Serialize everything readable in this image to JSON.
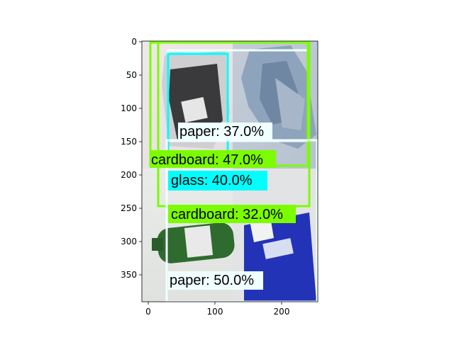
{
  "image_panel": {
    "x_ticks": [
      "0",
      "100",
      "200"
    ],
    "y_ticks": [
      "0",
      "50",
      "100",
      "150",
      "200",
      "250",
      "300",
      "350"
    ]
  },
  "colors": {
    "paper": "#f0ffff",
    "cardboard": "#7cfc00",
    "glass": "#00ffff"
  },
  "detections": [
    {
      "label": "paper: 37.0%"
    },
    {
      "label": "cardboard: 47.0%"
    },
    {
      "label": "glass: 40.0%"
    },
    {
      "label": "cardboard: 32.0%"
    },
    {
      "label": "paper: 50.0%"
    }
  ]
}
